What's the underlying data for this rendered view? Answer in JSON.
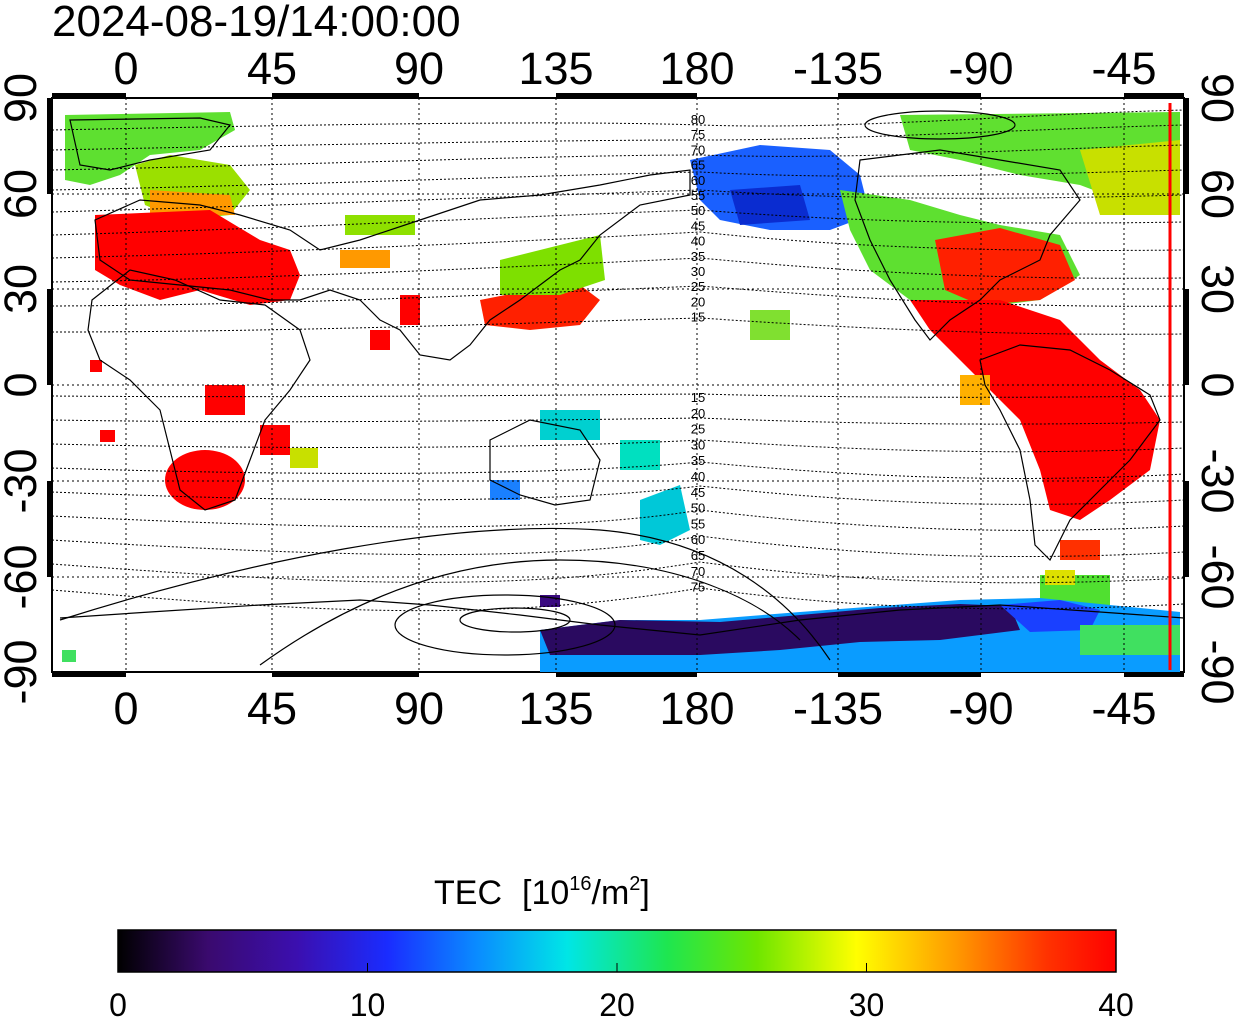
{
  "map": {
    "timestamp": "2024-08-19/14:00:00",
    "lon_ticks_top": [
      "0",
      "45",
      "90",
      "135",
      "180",
      "-135",
      "-90",
      "-45"
    ],
    "lon_ticks_bottom": [
      "0",
      "45",
      "90",
      "135",
      "180",
      "-135",
      "-90",
      "-45"
    ],
    "lat_ticks_left": [
      "90",
      "60",
      "30",
      "0",
      "-30",
      "-60",
      "-90"
    ],
    "lat_ticks_right": [
      "90",
      "60",
      "30",
      "0",
      "-30",
      "-60",
      "-90"
    ],
    "lon_range": [
      -20,
      340
    ],
    "lat_range": [
      -90,
      90
    ],
    "contour_labels_north": [
      "80",
      "75",
      "70",
      "65",
      "60",
      "55",
      "50",
      "45",
      "40",
      "35",
      "30",
      "25",
      "20",
      "15"
    ],
    "contour_labels_south": [
      "15",
      "20",
      "25",
      "30",
      "35",
      "40",
      "45",
      "50",
      "55",
      "60",
      "65",
      "70",
      "75"
    ],
    "terminator_color": "#ff0000"
  },
  "colorbar": {
    "title": "TEC",
    "unit_base": "[10",
    "unit_exp": "16",
    "unit_mid": "/m",
    "unit_exp2": "2",
    "unit_close": "]",
    "min": 0,
    "max": 40,
    "tick_labels": [
      "0",
      "10",
      "20",
      "30",
      "40"
    ],
    "colormap": [
      "#000000",
      "#3a0a6e",
      "#3b0fb0",
      "#1a2cff",
      "#0a8cff",
      "#00e6e6",
      "#1ee650",
      "#6ee600",
      "#ffff00",
      "#ff9900",
      "#ff3300",
      "#ff0000"
    ]
  }
}
